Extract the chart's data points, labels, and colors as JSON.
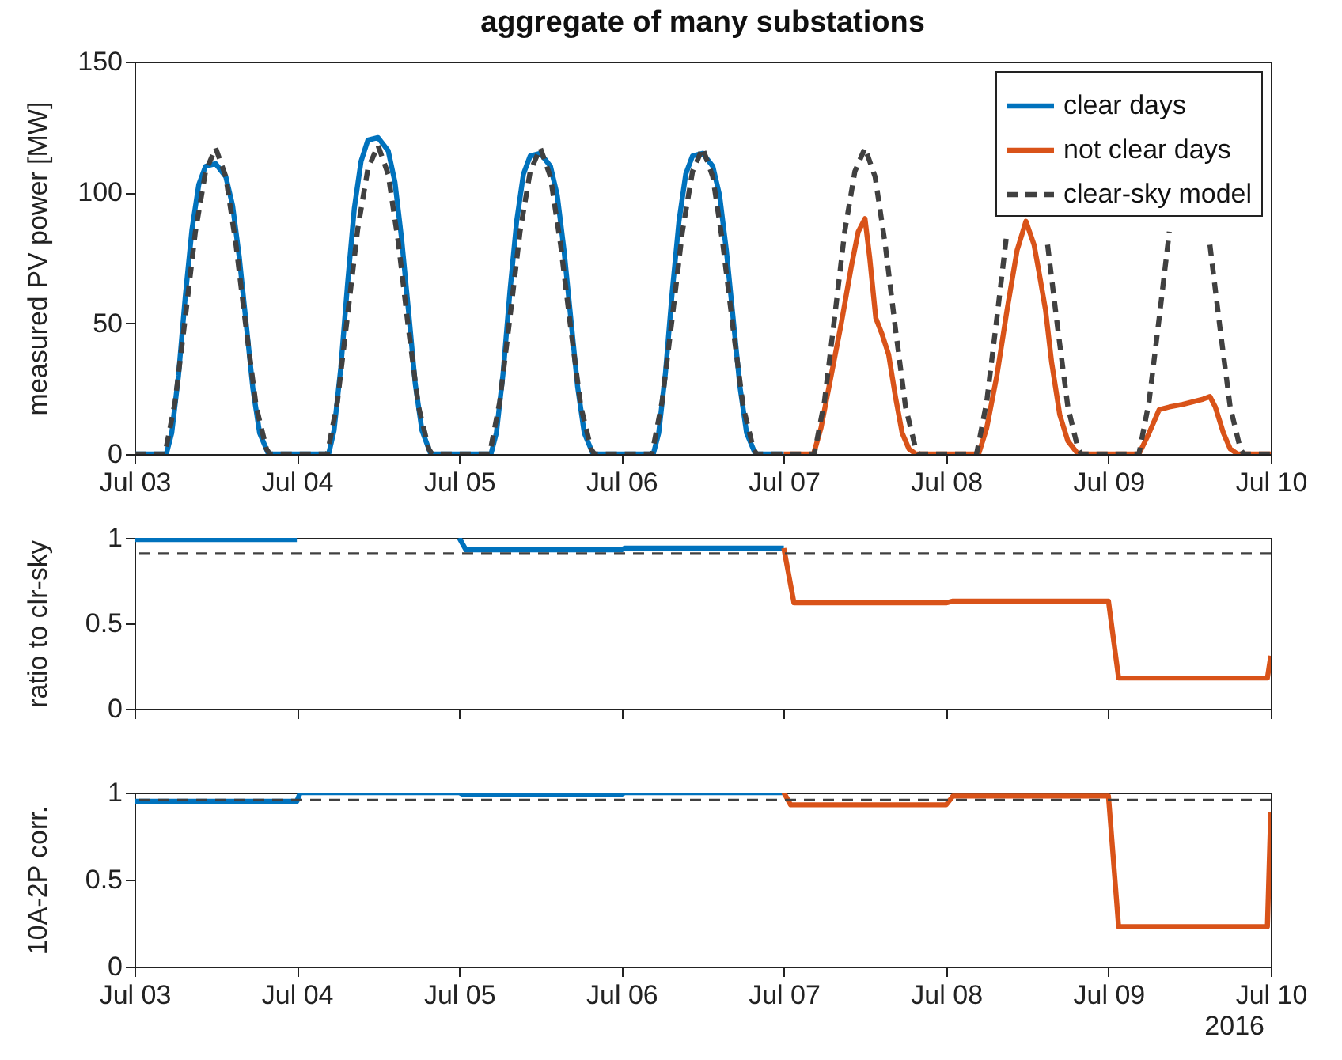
{
  "chart_data": [
    {
      "type": "line",
      "title": "aggregate of many substations",
      "ylabel": "measured PV power [MW]",
      "xlim": [
        "2016-07-03",
        "2016-07-10"
      ],
      "xticks": [
        {
          "value": "2016-07-03",
          "label": "Jul 03"
        },
        {
          "value": "2016-07-04",
          "label": "Jul 04"
        },
        {
          "value": "2016-07-05",
          "label": "Jul 05"
        },
        {
          "value": "2016-07-06",
          "label": "Jul 06"
        },
        {
          "value": "2016-07-07",
          "label": "Jul 07"
        },
        {
          "value": "2016-07-08",
          "label": "Jul 08"
        },
        {
          "value": "2016-07-09",
          "label": "Jul 09"
        },
        {
          "value": "2016-07-10",
          "label": "Jul 10"
        }
      ],
      "ylim": [
        0,
        150
      ],
      "yticks": [
        0,
        50,
        100,
        150
      ],
      "grid": false,
      "legend": "top right",
      "series": [
        {
          "name": "clear days",
          "color": "#0072bd",
          "line_style": "solid",
          "x": [
            "2016-07-03T00:00",
            "2016-07-03T04:42",
            "2016-07-03T05:30",
            "2016-07-03T06:30",
            "2016-07-03T07:30",
            "2016-07-03T08:30",
            "2016-07-03T09:30",
            "2016-07-03T10:30",
            "2016-07-03T12:00",
            "2016-07-03T13:30",
            "2016-07-03T14:30",
            "2016-07-03T15:30",
            "2016-07-03T16:30",
            "2016-07-03T17:30",
            "2016-07-03T18:30",
            "2016-07-03T19:48",
            "2016-07-04T00:00",
            "2016-07-04T04:42",
            "2016-07-04T05:30",
            "2016-07-04T06:30",
            "2016-07-04T07:30",
            "2016-07-04T08:30",
            "2016-07-04T09:30",
            "2016-07-04T10:30",
            "2016-07-04T12:00",
            "2016-07-04T13:30",
            "2016-07-04T14:30",
            "2016-07-04T15:30",
            "2016-07-04T16:30",
            "2016-07-04T17:30",
            "2016-07-04T18:30",
            "2016-07-04T19:48",
            "2016-07-05T00:00",
            "2016-07-05T04:42",
            "2016-07-05T05:30",
            "2016-07-05T06:30",
            "2016-07-05T07:30",
            "2016-07-05T08:30",
            "2016-07-05T09:30",
            "2016-07-05T10:30",
            "2016-07-05T12:00",
            "2016-07-05T13:30",
            "2016-07-05T14:30",
            "2016-07-05T15:30",
            "2016-07-05T16:30",
            "2016-07-05T17:30",
            "2016-07-05T18:30",
            "2016-07-05T19:48",
            "2016-07-06T00:00",
            "2016-07-06T04:42",
            "2016-07-06T05:30",
            "2016-07-06T06:30",
            "2016-07-06T07:30",
            "2016-07-06T08:30",
            "2016-07-06T09:30",
            "2016-07-06T10:30",
            "2016-07-06T12:00",
            "2016-07-06T13:30",
            "2016-07-06T14:30",
            "2016-07-06T15:30",
            "2016-07-06T16:30",
            "2016-07-06T17:30",
            "2016-07-06T18:30",
            "2016-07-06T19:48",
            "2016-07-07T00:00"
          ],
          "values": [
            0,
            0,
            8,
            30,
            60,
            86,
            103,
            110,
            111,
            106,
            95,
            75,
            50,
            25,
            8,
            0,
            0,
            0,
            9,
            33,
            65,
            94,
            112,
            120,
            121,
            116,
            104,
            82,
            55,
            27,
            9,
            0,
            0,
            0,
            8,
            31,
            62,
            89,
            107,
            114,
            115,
            110,
            99,
            78,
            52,
            26,
            8,
            0,
            0,
            0,
            8,
            31,
            62,
            89,
            107,
            114,
            115,
            110,
            99,
            78,
            52,
            26,
            8,
            0,
            0
          ]
        },
        {
          "name": "not clear days",
          "color": "#d95319",
          "line_style": "solid",
          "x": [
            "2016-07-07T00:00",
            "2016-07-07T04:24",
            "2016-07-07T05:30",
            "2016-07-07T07:00",
            "2016-07-07T08:30",
            "2016-07-07T10:00",
            "2016-07-07T11:00",
            "2016-07-07T12:00",
            "2016-07-07T12:42",
            "2016-07-07T13:36",
            "2016-07-07T14:30",
            "2016-07-07T15:30",
            "2016-07-07T16:30",
            "2016-07-07T17:30",
            "2016-07-07T18:30",
            "2016-07-07T19:30",
            "2016-07-08T00:00",
            "2016-07-08T04:48",
            "2016-07-08T06:00",
            "2016-07-08T07:30",
            "2016-07-08T09:00",
            "2016-07-08T10:30",
            "2016-07-08T11:48",
            "2016-07-08T13:00",
            "2016-07-08T13:42",
            "2016-07-08T14:42",
            "2016-07-08T15:36",
            "2016-07-08T16:48",
            "2016-07-08T18:00",
            "2016-07-08T19:30",
            "2016-07-09T00:00",
            "2016-07-09T04:30",
            "2016-07-09T06:00",
            "2016-07-09T07:30",
            "2016-07-09T09:00",
            "2016-07-09T11:00",
            "2016-07-09T12:30",
            "2016-07-09T14:00",
            "2016-07-09T15:00",
            "2016-07-09T15:48",
            "2016-07-09T17:00",
            "2016-07-09T18:00",
            "2016-07-09T19:06",
            "2016-07-10T00:00"
          ],
          "values": [
            0,
            0,
            10,
            30,
            50,
            72,
            85,
            90,
            75,
            52,
            46,
            38,
            22,
            8,
            2,
            0,
            0,
            0,
            10,
            30,
            55,
            78,
            89,
            80,
            70,
            55,
            35,
            15,
            5,
            0,
            0,
            0,
            8,
            17,
            18,
            19,
            20,
            21,
            22,
            18,
            8,
            2,
            0,
            0
          ]
        },
        {
          "name": "clear-sky model",
          "color": "#404040",
          "line_style": "dashed",
          "x": [
            "2016-07-03T00:00",
            "2016-07-03T04:30",
            "2016-07-03T06:00",
            "2016-07-03T07:30",
            "2016-07-03T09:00",
            "2016-07-03T10:30",
            "2016-07-03T12:00",
            "2016-07-03T13:30",
            "2016-07-03T15:00",
            "2016-07-03T16:30",
            "2016-07-03T18:00",
            "2016-07-03T19:30",
            "2016-07-03T20:00",
            "2016-07-04T04:30",
            "2016-07-04T06:00",
            "2016-07-04T07:30",
            "2016-07-04T09:00",
            "2016-07-04T10:30",
            "2016-07-04T12:00",
            "2016-07-04T13:30",
            "2016-07-04T15:00",
            "2016-07-04T16:30",
            "2016-07-04T18:00",
            "2016-07-04T19:30",
            "2016-07-04T20:00",
            "2016-07-05T04:30",
            "2016-07-05T06:00",
            "2016-07-05T07:30",
            "2016-07-05T09:00",
            "2016-07-05T10:30",
            "2016-07-05T12:00",
            "2016-07-05T13:30",
            "2016-07-05T15:00",
            "2016-07-05T16:30",
            "2016-07-05T18:00",
            "2016-07-05T19:30",
            "2016-07-05T20:00",
            "2016-07-06T04:30",
            "2016-07-06T06:00",
            "2016-07-06T07:30",
            "2016-07-06T09:00",
            "2016-07-06T10:30",
            "2016-07-06T12:00",
            "2016-07-06T13:30",
            "2016-07-06T15:00",
            "2016-07-06T16:30",
            "2016-07-06T18:00",
            "2016-07-06T19:30",
            "2016-07-06T20:00",
            "2016-07-07T04:30",
            "2016-07-07T06:00",
            "2016-07-07T07:30",
            "2016-07-07T09:00",
            "2016-07-07T10:30",
            "2016-07-07T12:00",
            "2016-07-07T13:30",
            "2016-07-07T15:00",
            "2016-07-07T16:30",
            "2016-07-07T18:00",
            "2016-07-07T19:30",
            "2016-07-07T20:00",
            "2016-07-08T04:30",
            "2016-07-08T06:00",
            "2016-07-08T07:30",
            "2016-07-08T09:00",
            "2016-07-08T10:30",
            "2016-07-08T12:00",
            "2016-07-08T13:30",
            "2016-07-08T15:00",
            "2016-07-08T16:30",
            "2016-07-08T18:00",
            "2016-07-08T19:30",
            "2016-07-08T20:00",
            "2016-07-09T04:30",
            "2016-07-09T06:00",
            "2016-07-09T07:30",
            "2016-07-09T09:00",
            "2016-07-09T10:30",
            "2016-07-09T12:00",
            "2016-07-09T13:30",
            "2016-07-09T15:00",
            "2016-07-09T16:30",
            "2016-07-09T18:00",
            "2016-07-09T19:30",
            "2016-07-09T20:00",
            "2016-07-10T00:00"
          ],
          "values": [
            0,
            0,
            20,
            52,
            85,
            108,
            117,
            106,
            80,
            48,
            18,
            2,
            0,
            0,
            20,
            53,
            86,
            109,
            118,
            107,
            81,
            48,
            18,
            2,
            0,
            0,
            20,
            52,
            85,
            108,
            117,
            106,
            80,
            48,
            18,
            2,
            0,
            0,
            20,
            52,
            85,
            108,
            117,
            106,
            80,
            48,
            18,
            2,
            0,
            0,
            20,
            52,
            85,
            108,
            117,
            106,
            80,
            48,
            18,
            2,
            0,
            0,
            20,
            52,
            85,
            null,
            null,
            null,
            80,
            48,
            18,
            2,
            0,
            0,
            20,
            52,
            85,
            null,
            null,
            null,
            80,
            48,
            18,
            2,
            0,
            0
          ]
        }
      ]
    },
    {
      "type": "line",
      "ylabel": "ratio to clr-sky",
      "xlim": [
        "2016-07-03",
        "2016-07-10"
      ],
      "xticks": [
        {
          "value": "2016-07-03",
          "label": null
        },
        {
          "value": "2016-07-04",
          "label": null
        },
        {
          "value": "2016-07-05",
          "label": null
        },
        {
          "value": "2016-07-06",
          "label": null
        },
        {
          "value": "2016-07-07",
          "label": null
        },
        {
          "value": "2016-07-08",
          "label": null
        },
        {
          "value": "2016-07-09",
          "label": null
        },
        {
          "value": "2016-07-10",
          "label": null
        }
      ],
      "ylim": [
        0,
        1
      ],
      "yticks": [
        0,
        0.5,
        1
      ],
      "grid": false,
      "tick_labels": "y",
      "ref_lines": [
        {
          "axis": "y",
          "value": 0.91,
          "color": "#404040",
          "line_style": "dashed"
        }
      ],
      "series": [
        {
          "color": "#0072bd",
          "x": [
            "2016-07-03T00:00",
            "2016-07-04T00:00",
            "2016-07-04T00:30",
            "2016-07-05T00:00",
            "2016-07-05T01:00",
            "2016-07-06T00:00",
            "2016-07-06T00:30",
            "2016-07-07T00:00"
          ],
          "values": [
            0.99,
            0.99,
            null,
            1,
            0.93,
            0.93,
            0.94,
            0.94
          ]
        },
        {
          "color": "#d95319",
          "x": [
            "2016-07-07T00:00",
            "2016-07-07T01:30",
            "2016-07-08T00:00",
            "2016-07-08T01:00",
            "2016-07-09T00:00",
            "2016-07-09T01:30",
            "2016-07-09T23:30",
            "2016-07-10T00:00"
          ],
          "values": [
            0.94,
            0.62,
            0.62,
            0.63,
            0.63,
            0.18,
            0.18,
            0.31
          ]
        }
      ]
    },
    {
      "type": "line",
      "ylabel": "10A-2P corr.",
      "annotations": [
        "2016"
      ],
      "xlim": [
        "2016-07-03",
        "2016-07-10"
      ],
      "xticks": [
        {
          "value": "2016-07-03",
          "label": "Jul 03"
        },
        {
          "value": "2016-07-04",
          "label": "Jul 04"
        },
        {
          "value": "2016-07-05",
          "label": "Jul 05"
        },
        {
          "value": "2016-07-06",
          "label": "Jul 06"
        },
        {
          "value": "2016-07-07",
          "label": "Jul 07"
        },
        {
          "value": "2016-07-08",
          "label": "Jul 08"
        },
        {
          "value": "2016-07-09",
          "label": "Jul 09"
        },
        {
          "value": "2016-07-10",
          "label": "Jul 10"
        }
      ],
      "ylim": [
        0,
        1
      ],
      "yticks": [
        0,
        0.5,
        1
      ],
      "grid": false,
      "ref_lines": [
        {
          "axis": "y",
          "value": 0.96,
          "color": "#404040",
          "line_style": "dashed"
        }
      ],
      "series": [
        {
          "color": "#0072bd",
          "x": [
            "2016-07-03T00:00",
            "2016-07-04T00:00",
            "2016-07-04T00:30",
            "2016-07-05T00:00",
            "2016-07-05T00:30",
            "2016-07-06T00:00",
            "2016-07-06T00:30",
            "2016-07-07T00:00"
          ],
          "values": [
            0.95,
            0.95,
            1,
            1,
            0.99,
            0.99,
            1,
            1
          ]
        },
        {
          "color": "#d95319",
          "x": [
            "2016-07-07T00:00",
            "2016-07-07T01:00",
            "2016-07-08T00:00",
            "2016-07-08T01:00",
            "2016-07-09T00:00",
            "2016-07-09T01:30",
            "2016-07-09T23:30",
            "2016-07-10T00:00"
          ],
          "values": [
            1,
            0.93,
            0.93,
            0.98,
            0.98,
            0.23,
            0.23,
            0.89
          ]
        }
      ]
    }
  ]
}
